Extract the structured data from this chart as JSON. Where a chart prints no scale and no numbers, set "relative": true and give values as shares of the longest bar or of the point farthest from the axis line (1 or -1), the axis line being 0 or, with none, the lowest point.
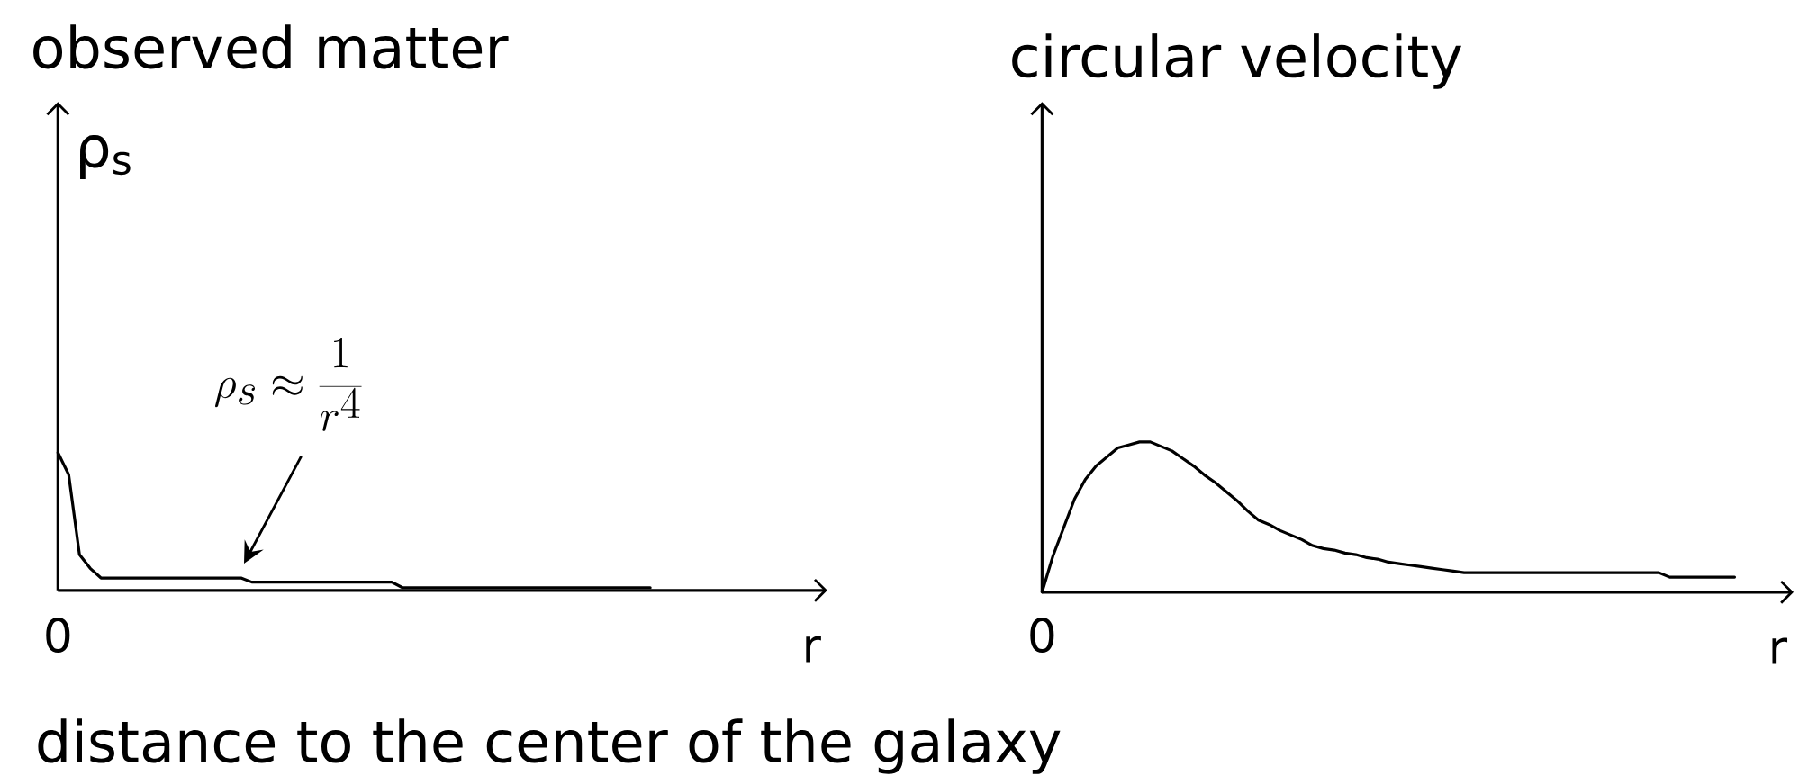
{
  "chart_data": [
    {
      "type": "line",
      "title": "observed matter",
      "xlabel": "r",
      "ylabel": "ρ$_{s}$",
      "relative": true,
      "color": "#000000",
      "categories": [
        null,
        null,
        null,
        null,
        null,
        null,
        null,
        null,
        null,
        null,
        null,
        null,
        null,
        null,
        null,
        null,
        null,
        null,
        null,
        null,
        null,
        null,
        null,
        null,
        null,
        null,
        null,
        null,
        null,
        null,
        null,
        null,
        null,
        null,
        null,
        null,
        null,
        null,
        null,
        null,
        null,
        null,
        null,
        null,
        null,
        null,
        null,
        null,
        null,
        null,
        null,
        null,
        null,
        null,
        null,
        null
      ],
      "values": [
        1,
        0.84,
        0.26,
        0.16,
        0.09,
        0.09,
        0.09,
        0.09,
        0.09,
        0.09,
        0.09,
        0.09,
        0.09,
        0.09,
        0.09,
        0.09,
        0.09,
        0.09,
        0.06,
        0.06,
        0.06,
        0.06,
        0.06,
        0.06,
        0.06,
        0.06,
        0.06,
        0.06,
        0.06,
        0.06,
        0.06,
        0.06,
        0.02,
        0.02,
        0.02,
        0.02,
        0.02,
        0.02,
        0.02,
        0.02,
        0.02,
        0.02,
        0.02,
        0.02,
        0.02,
        0.02,
        0.02,
        0.02,
        0.02,
        0.02,
        0.02,
        0.02,
        0.02,
        0.02,
        0.02,
        0.02
      ],
      "annotations": [
        "\\rho_s \\approx \\frac{1}{r^4}",
        "0",
        "distance to the center of the galaxy"
      ]
    },
    {
      "type": "line",
      "title": "circular velocity",
      "xlabel": "r",
      "relative": true,
      "color": "#000000",
      "categories": [
        null,
        null,
        null,
        null,
        null,
        null,
        null,
        null,
        null,
        null,
        null,
        null,
        null,
        null,
        null,
        null,
        null,
        null,
        null,
        null,
        null,
        null,
        null,
        null,
        null,
        null,
        null,
        null,
        null,
        null,
        null,
        null,
        null,
        null,
        null,
        null,
        null,
        null,
        null,
        null,
        null,
        null,
        null,
        null,
        null,
        null,
        null,
        null,
        null,
        null,
        null,
        null,
        null,
        null,
        null,
        null,
        null,
        null,
        null,
        null,
        null,
        null,
        null,
        null,
        null
      ],
      "values": [
        0,
        0.24,
        0.43,
        0.62,
        0.75,
        0.84,
        0.9,
        0.96,
        0.98,
        1,
        1,
        0.97,
        0.94,
        0.89,
        0.84,
        0.78,
        0.73,
        0.67,
        0.61,
        0.54,
        0.48,
        0.45,
        0.41,
        0.38,
        0.35,
        0.31,
        0.29,
        0.28,
        0.26,
        0.25,
        0.23,
        0.22,
        0.2,
        0.19,
        0.18,
        0.17,
        0.16,
        0.15,
        0.14,
        0.13,
        0.13,
        0.13,
        0.13,
        0.13,
        0.13,
        0.13,
        0.13,
        0.13,
        0.13,
        0.13,
        0.13,
        0.13,
        0.13,
        0.13,
        0.13,
        0.13,
        0.13,
        0.13,
        0.1,
        0.1,
        0.1,
        0.1,
        0.1,
        0.1,
        0.1
      ],
      "annotations": [
        "0"
      ]
    }
  ]
}
